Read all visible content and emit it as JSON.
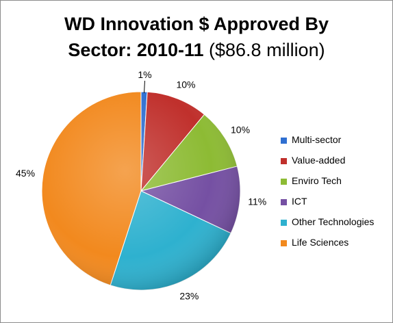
{
  "title_line1": "WD Innovation $ Approved By",
  "title_line2_bold": "Sector:  2010-11",
  "title_line2_rest": " ($86.8 million)",
  "chart_data": {
    "type": "pie",
    "title": "WD Innovation $ Approved By Sector:  2010-11 ($86.8 million)",
    "legend_position": "right",
    "slices": [
      {
        "label": "Multi-sector",
        "value": 1,
        "display": "1%",
        "color": "#2f6fd1"
      },
      {
        "label": "Value-added",
        "value": 10,
        "display": "10%",
        "color": "#c0302c"
      },
      {
        "label": "Enviro Tech",
        "value": 10,
        "display": "10%",
        "color": "#8dbb34"
      },
      {
        "label": "ICT",
        "value": 11,
        "display": "11%",
        "color": "#7550a3"
      },
      {
        "label": "Other Technologies",
        "value": 23,
        "display": "23%",
        "color": "#2eb1cf"
      },
      {
        "label": "Life Sciences",
        "value": 45,
        "display": "45%",
        "color": "#f2891e"
      }
    ]
  }
}
